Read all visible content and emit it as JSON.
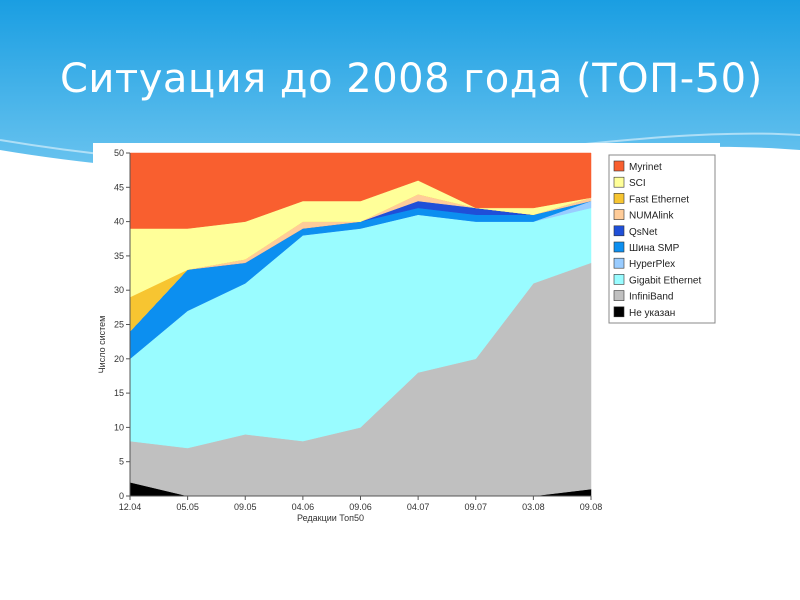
{
  "slide": {
    "title": "Ситуация до 2008 года (ТОП-50)"
  },
  "colors": {
    "header_top": "#1a9ee2",
    "header_bottom": "#6fc6f0",
    "wave": "#ffffff"
  },
  "chart_data": {
    "type": "area",
    "stacked": true,
    "xlabel": "Редакции Топ50",
    "ylabel": "Число систем",
    "ylim": [
      0,
      50
    ],
    "yticks": [
      0,
      5,
      10,
      15,
      20,
      25,
      30,
      35,
      40,
      45,
      50
    ],
    "x": [
      "12.04",
      "05.05",
      "09.05",
      "04.06",
      "09.06",
      "04.07",
      "09.07",
      "03.08",
      "09.08"
    ],
    "legend_position": "top-right",
    "grid": false,
    "series": [
      {
        "name": "Не указан",
        "color": "#000000",
        "values": [
          2,
          0,
          0,
          0,
          0,
          0,
          0,
          0,
          1
        ]
      },
      {
        "name": "InfiniBand",
        "color": "#c0c0c0",
        "values": [
          6,
          7,
          9,
          8,
          10,
          18,
          20,
          31,
          33
        ]
      },
      {
        "name": "Gigabit Ethernet",
        "color": "#99fcff",
        "values": [
          12,
          20,
          22,
          30,
          29,
          23,
          20,
          9,
          8
        ]
      },
      {
        "name": "HyperPlex",
        "color": "#99ccff",
        "values": [
          0,
          0,
          0,
          0,
          0,
          0,
          0,
          0,
          1
        ]
      },
      {
        "name": "Шина SMP",
        "color": "#0c8ff0",
        "values": [
          4,
          6,
          3,
          1,
          1,
          1,
          1,
          1,
          0
        ]
      },
      {
        "name": "QsNet",
        "color": "#1f4fd8",
        "values": [
          0,
          0,
          0,
          0,
          0,
          1,
          1,
          0,
          0
        ]
      },
      {
        "name": "NUMAlink",
        "color": "#ffcc99",
        "values": [
          0,
          0,
          0.5,
          1,
          0,
          1,
          0,
          0,
          0.5
        ]
      },
      {
        "name": "Fast Ethernet",
        "color": "#f7c531",
        "values": [
          5,
          0,
          0,
          0,
          0,
          0,
          0,
          0,
          0
        ]
      },
      {
        "name": "SCI",
        "color": "#ffff99",
        "values": [
          10,
          6,
          5.5,
          3,
          3,
          2,
          0,
          1,
          0
        ]
      },
      {
        "name": "Myrinet",
        "color": "#f95f2f",
        "values": [
          11,
          11,
          10,
          7,
          7,
          4,
          8,
          8,
          6.5
        ]
      }
    ]
  }
}
